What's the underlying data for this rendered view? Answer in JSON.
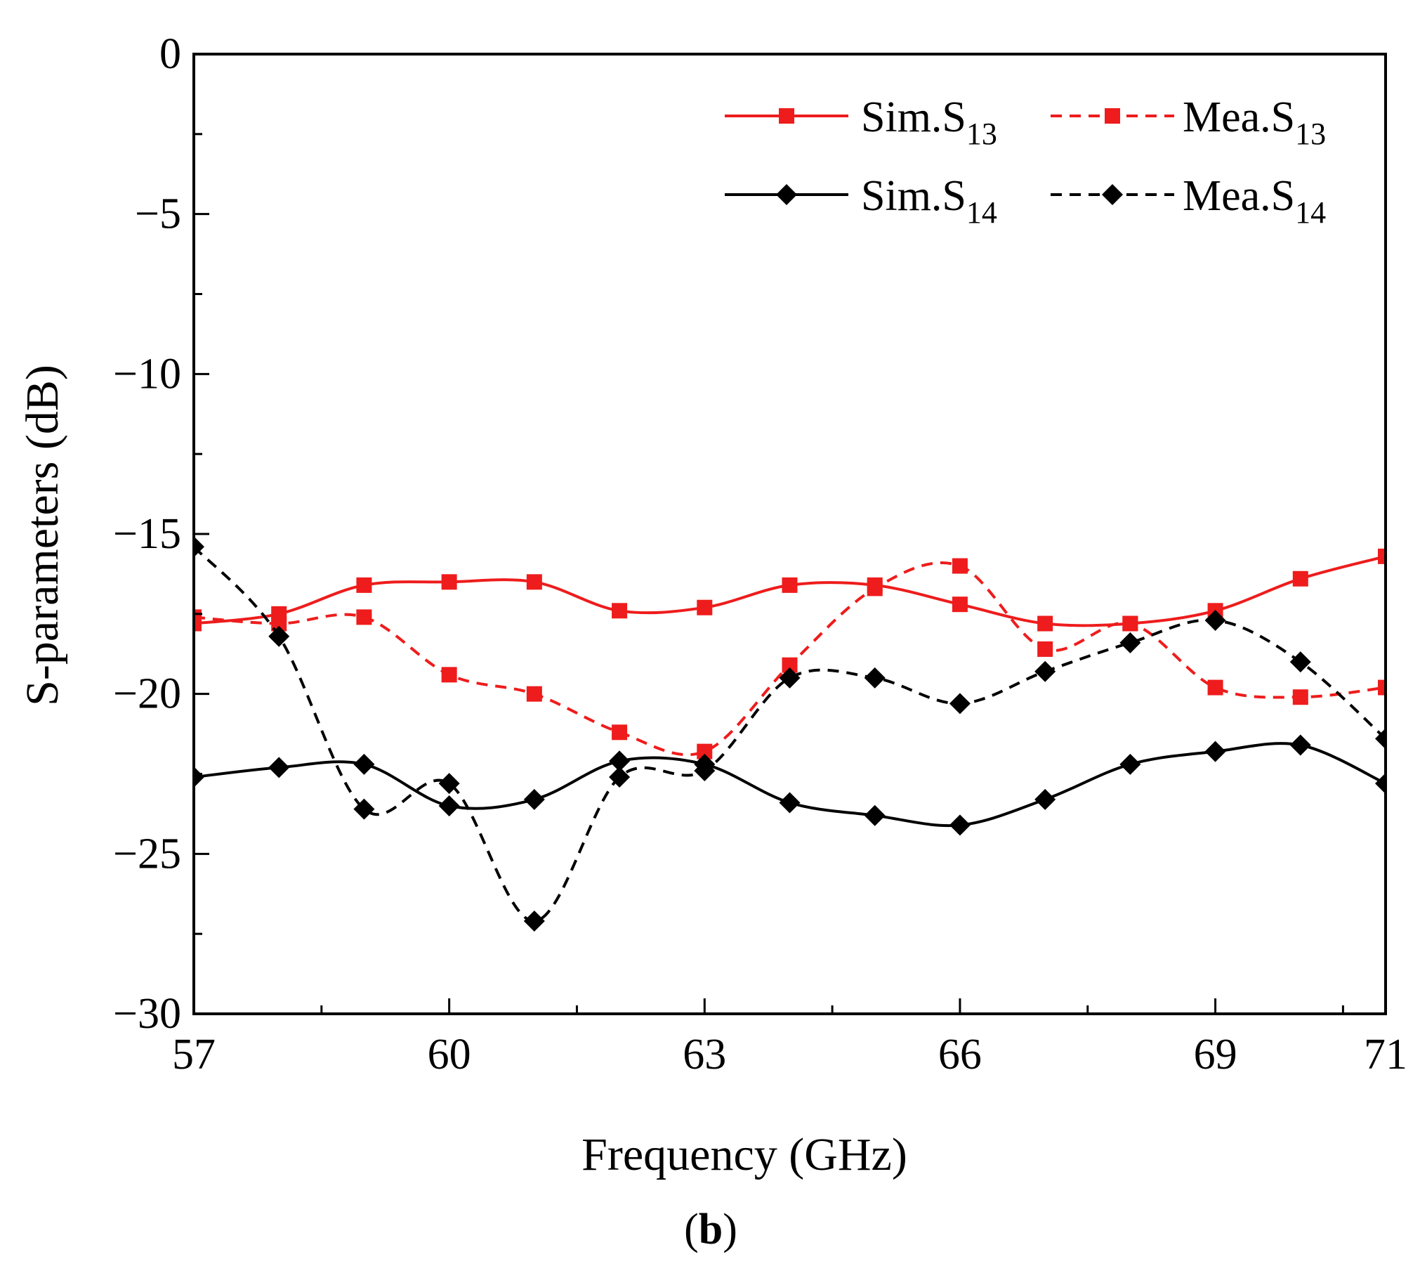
{
  "chart_data": {
    "type": "line",
    "title": "",
    "xlabel": "Frequency (GHz)",
    "ylabel": "S-parameters (dB)",
    "xlim": [
      57,
      71
    ],
    "ylim": [
      -30,
      0
    ],
    "xticks": [
      57,
      60,
      63,
      66,
      69,
      71
    ],
    "yticks": [
      0,
      -5,
      -10,
      -15,
      -20,
      -25,
      -30
    ],
    "xtick_labels": [
      "57",
      "60",
      "63",
      "66",
      "69",
      "71"
    ],
    "ytick_labels": [
      "0",
      "−5",
      "−10",
      "−15",
      "−20",
      "−25",
      "−30"
    ],
    "grid": false,
    "legend_position": "top-right",
    "panel_label": {
      "open": "(",
      "letter": "b",
      "close": ")"
    },
    "x": [
      57,
      58,
      59,
      60,
      61,
      62,
      63,
      64,
      65,
      66,
      67,
      68,
      69,
      70,
      71
    ],
    "series": [
      {
        "name": "Sim.S13",
        "legend_main": "Sim.S",
        "legend_sub": "13",
        "color": "#ee1c1c",
        "dash": "solid",
        "marker": "square",
        "values": [
          -17.8,
          -17.5,
          -16.6,
          -16.5,
          -16.5,
          -17.4,
          -17.3,
          -16.6,
          -16.6,
          -17.2,
          -17.8,
          -17.8,
          -17.4,
          -16.4,
          -15.7
        ]
      },
      {
        "name": "Mea.S13",
        "legend_main": "Mea.S",
        "legend_sub": "13",
        "color": "#ee1c1c",
        "dash": "dashed",
        "marker": "square",
        "values": [
          -17.6,
          -17.8,
          -17.6,
          -19.4,
          -20.0,
          -21.2,
          -21.8,
          -19.1,
          -16.7,
          -16.0,
          -18.6,
          -17.8,
          -19.8,
          -20.1,
          -19.8
        ]
      },
      {
        "name": "Sim.S14",
        "legend_main": "Sim.S",
        "legend_sub": "14",
        "color": "#000000",
        "dash": "solid",
        "marker": "diamond",
        "values": [
          -22.6,
          -22.3,
          -22.2,
          -23.5,
          -23.3,
          -22.1,
          -22.2,
          -23.4,
          -23.8,
          -24.1,
          -23.3,
          -22.2,
          -21.8,
          -21.6,
          -22.8
        ]
      },
      {
        "name": "Mea.S14",
        "legend_main": "Mea.S",
        "legend_sub": "14",
        "color": "#000000",
        "dash": "dashed",
        "marker": "diamond",
        "values": [
          -15.4,
          -18.2,
          -23.6,
          -22.8,
          -27.1,
          -22.6,
          -22.4,
          -19.5,
          -19.5,
          -20.3,
          -19.3,
          -18.4,
          -17.7,
          -19.0,
          -21.4
        ]
      }
    ]
  }
}
